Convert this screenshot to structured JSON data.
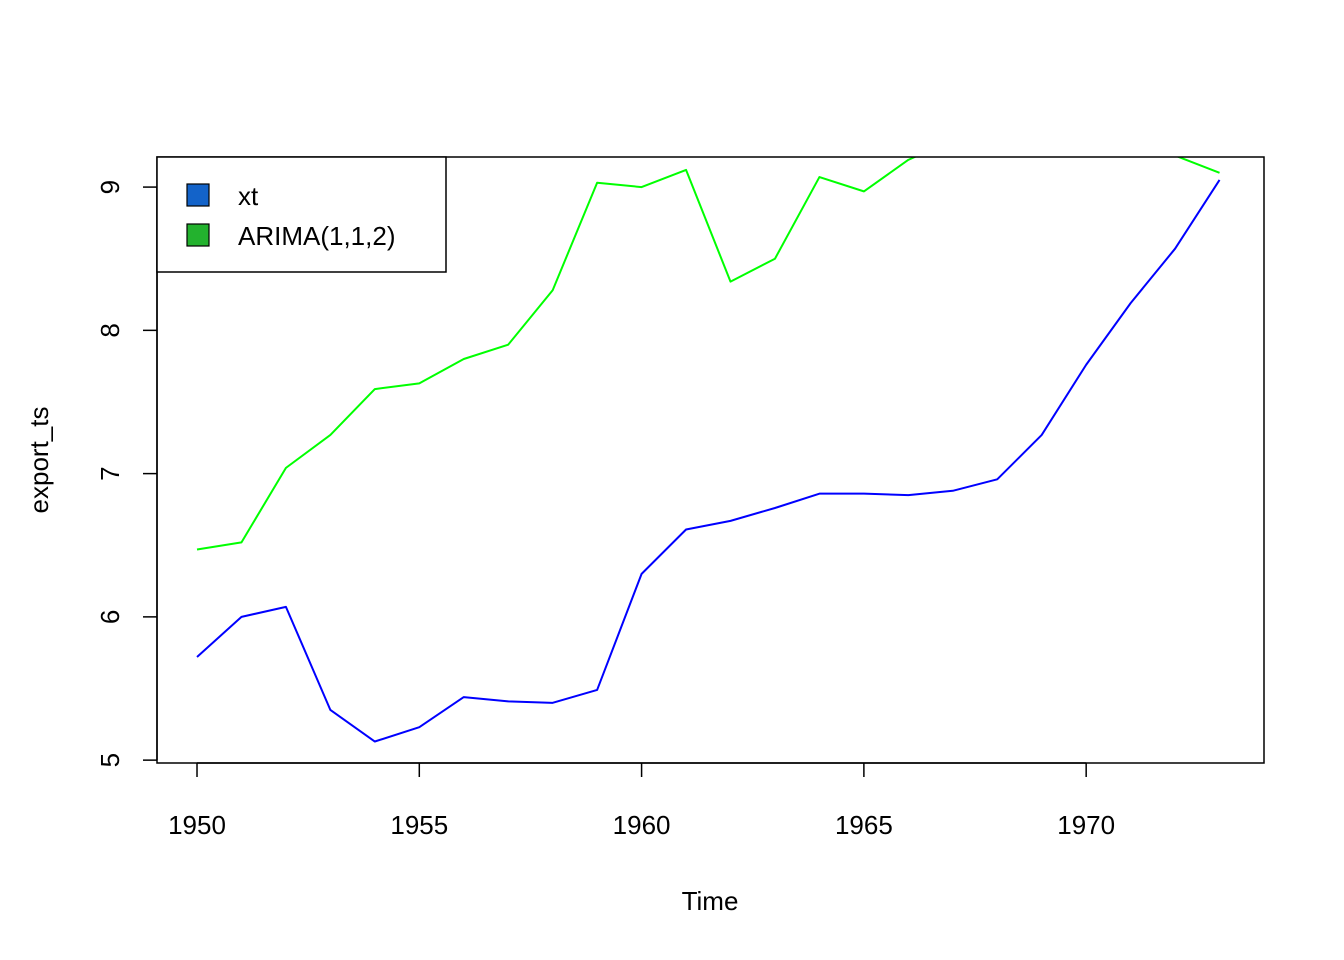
{
  "chart_data": {
    "type": "line",
    "xlabel": "Time",
    "ylabel": "export_ts",
    "xlim": [
      1949.1,
      1974.0
    ],
    "ylim": [
      4.98,
      9.21
    ],
    "x_ticks": [
      1950,
      1955,
      1960,
      1965,
      1970
    ],
    "x_tick_labels": [
      "1950",
      "1955",
      "1960",
      "1965",
      "1970"
    ],
    "y_ticks": [
      5,
      6,
      7,
      8,
      9
    ],
    "y_tick_labels": [
      "5",
      "6",
      "7",
      "8",
      "9"
    ],
    "x": [
      1950,
      1951,
      1952,
      1953,
      1954,
      1955,
      1956,
      1957,
      1958,
      1959,
      1960,
      1961,
      1962,
      1963,
      1964,
      1965,
      1966,
      1967,
      1968,
      1969,
      1970,
      1971,
      1972,
      1973
    ],
    "series": [
      {
        "name": "xt",
        "color": "#0000ff",
        "values": [
          5.72,
          6.0,
          6.07,
          5.35,
          5.13,
          5.23,
          5.44,
          5.41,
          5.4,
          5.49,
          6.3,
          6.61,
          6.67,
          6.76,
          6.86,
          6.86,
          6.85,
          6.88,
          6.96,
          7.27,
          7.76,
          8.19,
          8.57,
          9.05
        ]
      },
      {
        "name": "ARIMA(1,1,2)",
        "color": "#00ff00",
        "values": [
          6.47,
          6.52,
          7.04,
          7.27,
          7.59,
          7.63,
          7.8,
          7.9,
          8.28,
          9.03,
          9.0,
          9.12,
          8.34,
          8.5,
          9.07,
          8.97,
          9.19,
          9.33,
          9.38,
          9.45,
          9.52,
          9.4,
          9.22,
          9.1
        ]
      }
    ],
    "legend": {
      "position": "top-left",
      "items": [
        {
          "label": "xt",
          "swatch_color": "#1363c9"
        },
        {
          "label": "ARIMA(1,1,2)",
          "swatch_color": "#23b22e"
        }
      ]
    },
    "grid": false
  }
}
